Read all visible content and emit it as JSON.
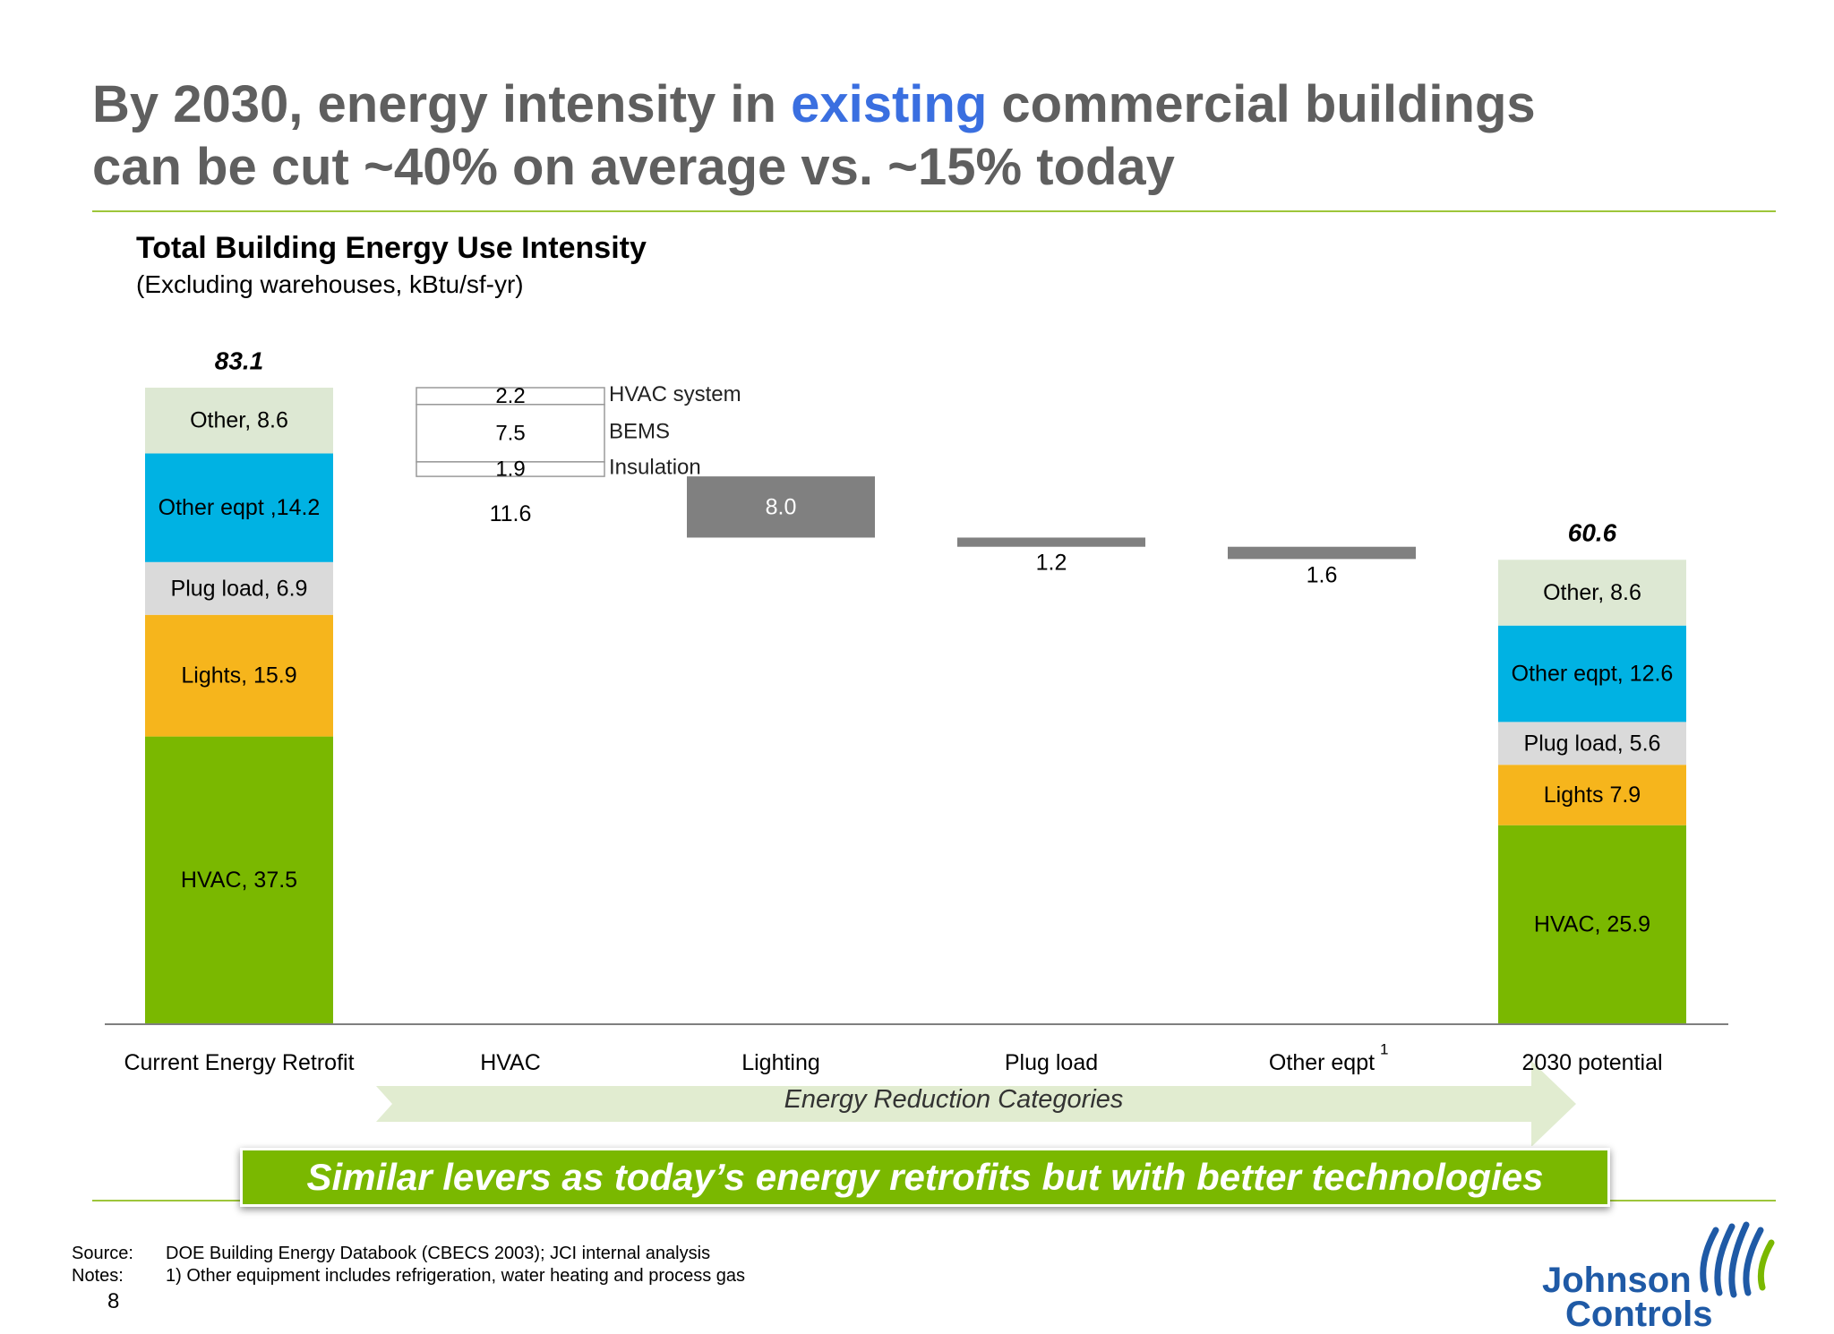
{
  "headline": {
    "line1_pre": "By 2030, energy intensity in ",
    "line1_highlight": "existing",
    "line1_post": " commercial buildings",
    "line2": "can be cut ~40% on average vs. ~15% today"
  },
  "subtitle": "Total Building Energy Use Intensity",
  "subnote": "(Excluding warehouses, kBtu/sf-yr)",
  "chart_data": {
    "type": "bar",
    "subtype": "waterfall",
    "categories": [
      "Current Energy Retrofit",
      "HVAC",
      "Lighting",
      "Plug load",
      "Other eqpt",
      "2030 potential"
    ],
    "category_superscripts": [
      "",
      "",
      "",
      "",
      "1",
      ""
    ],
    "ylim": [
      0,
      83.1
    ],
    "current": {
      "total": "83.1",
      "segments": [
        {
          "name": "HVAC",
          "value": 37.5,
          "label": "HVAC, 37.5",
          "color": "#7ab800"
        },
        {
          "name": "Lights",
          "value": 15.9,
          "label": "Lights, 15.9",
          "color": "#f6b51c"
        },
        {
          "name": "Plug load",
          "value": 6.9,
          "label": "Plug load, 6.9",
          "color": "#dadada"
        },
        {
          "name": "Other eqpt",
          "value": 14.2,
          "label": "Other eqpt ,14.2",
          "color": "#00b2e3"
        },
        {
          "name": "Other",
          "value": 8.6,
          "label": "Other, 8.6",
          "color": "#dde8d3"
        }
      ]
    },
    "reductions": [
      {
        "category": "HVAC",
        "value": 11.6,
        "label": "11.6",
        "components": [
          {
            "name": "HVAC system",
            "value": 2.2,
            "label": "2.2"
          },
          {
            "name": "BEMS",
            "value": 7.5,
            "label": "7.5"
          },
          {
            "name": "Insulation",
            "value": 1.9,
            "label": "1.9"
          }
        ]
      },
      {
        "category": "Lighting",
        "value": 8.0,
        "label": "8.0"
      },
      {
        "category": "Plug load",
        "value": 1.2,
        "label": "1.2"
      },
      {
        "category": "Other eqpt",
        "value": 1.6,
        "label": "1.6"
      }
    ],
    "potential": {
      "total": "60.6",
      "segments": [
        {
          "name": "HVAC",
          "value": 25.9,
          "label": "HVAC, 25.9",
          "color": "#7ab800"
        },
        {
          "name": "Lights",
          "value": 7.9,
          "label": "Lights 7.9",
          "color": "#f6b51c"
        },
        {
          "name": "Plug load",
          "value": 5.6,
          "label": "Plug load, 5.6",
          "color": "#dadada"
        },
        {
          "name": "Other eqpt",
          "value": 12.6,
          "label": "Other eqpt, 12.6",
          "color": "#00b2e3"
        },
        {
          "name": "Other",
          "value": 8.6,
          "label": "Other, 8.6",
          "color": "#dde8d3"
        }
      ]
    },
    "reduction_color": "#808080",
    "arrow_label": "Energy Reduction Categories",
    "arrow_color": "#e1ecd0"
  },
  "banner": "Similar levers as today’s energy retrofits but with better technologies",
  "footer": {
    "source_label": "Source:",
    "source_text": "DOE Building Energy Databook (CBECS 2003); JCI internal analysis",
    "notes_label": "Notes:",
    "notes_text": "1) Other equipment  includes refrigeration, water heating and process gas",
    "page_number": "8"
  },
  "logo": {
    "line1": "Johnson",
    "line2": "Controls",
    "icon": "johnson-controls-wave-icon"
  }
}
